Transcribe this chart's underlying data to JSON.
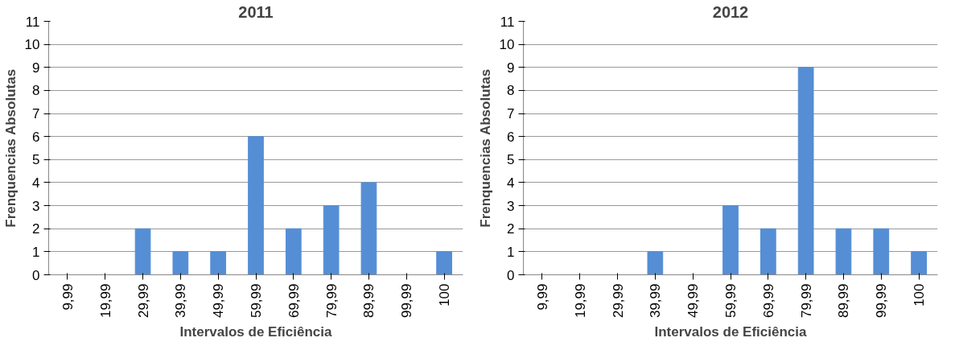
{
  "chart_data": [
    {
      "type": "bar",
      "title": "2011",
      "xlabel": "Intervalos de Eficiência",
      "ylabel": "Frenquencias Absolutas",
      "categories": [
        "9,99",
        "19,99",
        "29,99",
        "39,99",
        "49,99",
        "59,99",
        "69,99",
        "79,99",
        "89,99",
        "99,99",
        "100"
      ],
      "values": [
        0,
        0,
        2,
        1,
        1,
        6,
        2,
        3,
        4,
        0,
        1
      ],
      "color": "#558ed5",
      "ylim": [
        0,
        11
      ],
      "yticks": [
        0,
        1,
        2,
        3,
        4,
        5,
        6,
        7,
        8,
        9,
        10,
        11
      ],
      "grid": "y"
    },
    {
      "type": "bar",
      "title": "2012",
      "xlabel": "Intervalos de Eficiência",
      "ylabel": "Frenquencias Absolutas",
      "categories": [
        "9,99",
        "19,99",
        "29,99",
        "39,99",
        "49,99",
        "59,99",
        "69,99",
        "79,99",
        "89,99",
        "99,99",
        "100"
      ],
      "values": [
        0,
        0,
        0,
        1,
        0,
        3,
        2,
        9,
        2,
        2,
        1
      ],
      "color": "#558ed5",
      "ylim": [
        0,
        11
      ],
      "yticks": [
        0,
        1,
        2,
        3,
        4,
        5,
        6,
        7,
        8,
        9,
        10,
        11
      ],
      "grid": "y"
    }
  ]
}
